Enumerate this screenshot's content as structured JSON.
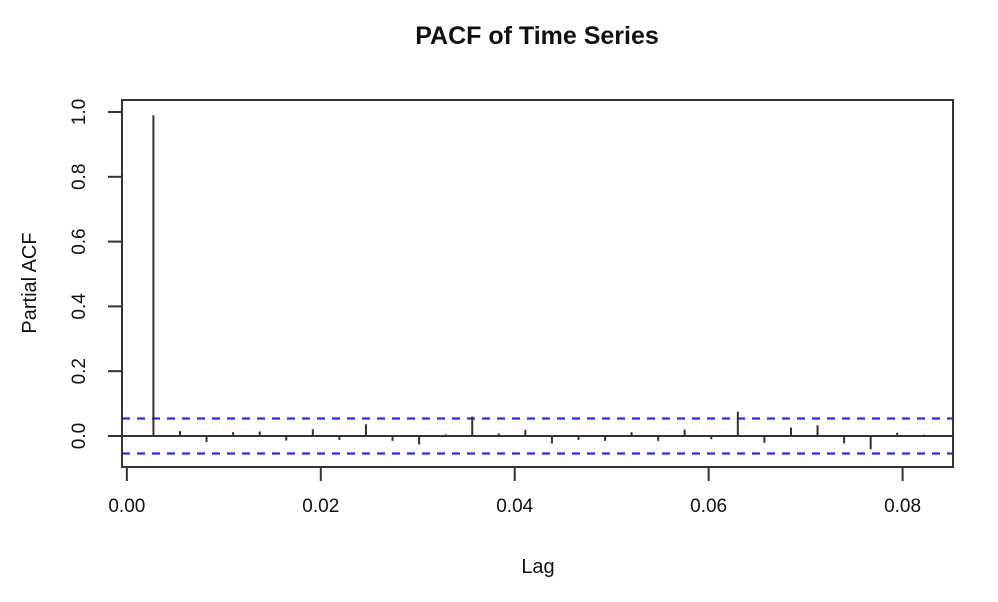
{
  "figure": {
    "background": "#ffffff"
  },
  "chart_data": {
    "type": "bar",
    "subtype": "pacf-spike-plot",
    "title": "PACF of Time Series",
    "xlabel": "Lag",
    "ylabel": "Partial ACF",
    "x_tick_labels": [
      "0.00",
      "0.02",
      "0.04",
      "0.06",
      "0.08"
    ],
    "x_tick_values": [
      0.0,
      0.02,
      0.04,
      0.06,
      0.08
    ],
    "y_tick_labels": [
      "0.0",
      "0.2",
      "0.4",
      "0.6",
      "0.8",
      "1.0"
    ],
    "y_tick_values": [
      0.0,
      0.2,
      0.4,
      0.6,
      0.8,
      1.0
    ],
    "xlim": [
      -0.0005,
      0.0852
    ],
    "ylim": [
      -0.0957,
      1.037
    ],
    "grid": false,
    "legend": null,
    "confidence_band": {
      "upper": 0.054,
      "lower": -0.054,
      "line_style": "dashed",
      "color": "#2b2bf5"
    },
    "zero_line": 0.0,
    "lag_spacing": 0.0027397,
    "series": [
      {
        "name": "partial-acf",
        "points": [
          {
            "lag": 1,
            "x": 0.00274,
            "value": 0.99
          },
          {
            "lag": 2,
            "x": 0.00548,
            "value": 0.015
          },
          {
            "lag": 3,
            "x": 0.00822,
            "value": -0.019
          },
          {
            "lag": 4,
            "x": 0.01096,
            "value": 0.012
          },
          {
            "lag": 5,
            "x": 0.0137,
            "value": 0.014
          },
          {
            "lag": 6,
            "x": 0.01644,
            "value": -0.014
          },
          {
            "lag": 7,
            "x": 0.01918,
            "value": 0.021
          },
          {
            "lag": 8,
            "x": 0.02192,
            "value": -0.012
          },
          {
            "lag": 9,
            "x": 0.02466,
            "value": 0.036
          },
          {
            "lag": 10,
            "x": 0.0274,
            "value": -0.015
          },
          {
            "lag": 11,
            "x": 0.03014,
            "value": -0.026
          },
          {
            "lag": 12,
            "x": 0.03288,
            "value": 0.005
          },
          {
            "lag": 13,
            "x": 0.03562,
            "value": 0.06
          },
          {
            "lag": 14,
            "x": 0.03836,
            "value": 0.008
          },
          {
            "lag": 15,
            "x": 0.0411,
            "value": 0.019
          },
          {
            "lag": 16,
            "x": 0.04384,
            "value": -0.023
          },
          {
            "lag": 17,
            "x": 0.04658,
            "value": -0.012
          },
          {
            "lag": 18,
            "x": 0.04932,
            "value": -0.015
          },
          {
            "lag": 19,
            "x": 0.05205,
            "value": 0.012
          },
          {
            "lag": 20,
            "x": 0.05479,
            "value": -0.015
          },
          {
            "lag": 21,
            "x": 0.05753,
            "value": 0.02
          },
          {
            "lag": 22,
            "x": 0.06027,
            "value": -0.01
          },
          {
            "lag": 23,
            "x": 0.06301,
            "value": 0.075
          },
          {
            "lag": 24,
            "x": 0.06575,
            "value": -0.021
          },
          {
            "lag": 25,
            "x": 0.06849,
            "value": 0.026
          },
          {
            "lag": 26,
            "x": 0.07123,
            "value": 0.033
          },
          {
            "lag": 27,
            "x": 0.07397,
            "value": -0.023
          },
          {
            "lag": 28,
            "x": 0.07671,
            "value": -0.041
          },
          {
            "lag": 29,
            "x": 0.07945,
            "value": 0.01
          },
          {
            "lag": 30,
            "x": 0.08219,
            "value": 0.004
          }
        ]
      }
    ],
    "colors": {
      "spike": "#333333",
      "axis": "#333333",
      "confidence": "#2b2bf5",
      "text": "#111111"
    }
  }
}
